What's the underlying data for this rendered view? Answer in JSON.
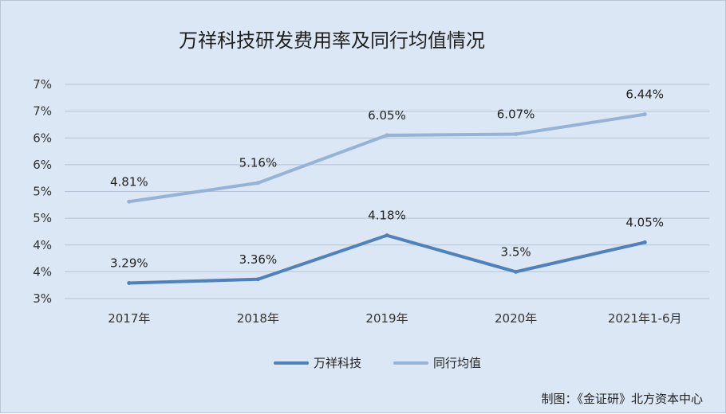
{
  "chart_data": {
    "type": "line",
    "title": "万祥科技研发费用率及同行均值情况",
    "categories": [
      "2017年",
      "2018年",
      "2019年",
      "2020年",
      "2021年1-6月"
    ],
    "y_tick_labels": [
      "3%",
      "4%",
      "4%",
      "5%",
      "5%",
      "6%",
      "6%",
      "7%",
      "7%"
    ],
    "ylim": [
      3.0,
      7.0
    ],
    "grid": true,
    "legend_position": "bottom",
    "series": [
      {
        "name": "万祥科技",
        "values": [
          3.29,
          3.36,
          4.18,
          3.5,
          4.05
        ],
        "labels": [
          "3.29%",
          "3.36%",
          "4.18%",
          "3.5%",
          "4.05%"
        ],
        "color": "#4f81bd"
      },
      {
        "name": "同行均值",
        "values": [
          4.81,
          5.16,
          6.05,
          6.07,
          6.44
        ],
        "labels": [
          "4.81%",
          "5.16%",
          "6.05%",
          "6.07%",
          "6.44%"
        ],
        "color": "#95b3d7"
      }
    ]
  },
  "source_note": "制图：《金证研》北方资本中心"
}
